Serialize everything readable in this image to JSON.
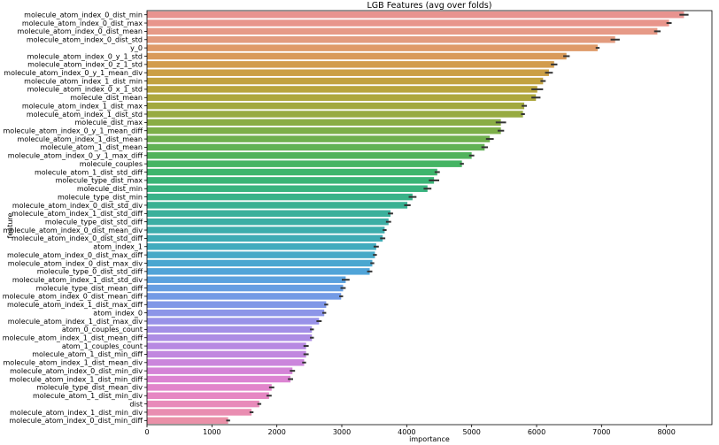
{
  "chart_data": {
    "type": "bar",
    "orientation": "horizontal",
    "title": "LGB Features (avg over folds)",
    "xlabel": "importance",
    "ylabel": "feature",
    "xlim": [
      0,
      8700
    ],
    "xticks": [
      0,
      1000,
      2000,
      3000,
      4000,
      5000,
      6000,
      7000,
      8000
    ],
    "grid": false,
    "error_bars": true,
    "bars": [
      {
        "label": "molecule_atom_index_0_dist_min",
        "value": 8270,
        "err": 70,
        "color": "#e8938f"
      },
      {
        "label": "molecule_atom_index_0_dist_max",
        "value": 8040,
        "err": 40,
        "color": "#e8958c"
      },
      {
        "label": "molecule_atom_index_0_dist_mean",
        "value": 7860,
        "err": 50,
        "color": "#e69a87"
      },
      {
        "label": "molecule_atom_index_0_dist_std",
        "value": 7210,
        "err": 70,
        "color": "#e29b7e"
      },
      {
        "label": "y_0",
        "value": 6940,
        "err": 30,
        "color": "#df9a68"
      },
      {
        "label": "molecule_atom_index_0_y_1_std",
        "value": 6460,
        "err": 50,
        "color": "#d99a5a"
      },
      {
        "label": "molecule_atom_index_0_z_1_std",
        "value": 6270,
        "err": 50,
        "color": "#d29c4d"
      },
      {
        "label": "molecule_atom_index_0_y_1_mean_div",
        "value": 6190,
        "err": 60,
        "color": "#cb9f45"
      },
      {
        "label": "molecule_atom_index_1_dist_min",
        "value": 6100,
        "err": 40,
        "color": "#c2a240"
      },
      {
        "label": "molecule_atom_index_0_x_1_std",
        "value": 6010,
        "err": 90,
        "color": "#b8a43c"
      },
      {
        "label": "molecule_dist_mean",
        "value": 5990,
        "err": 70,
        "color": "#ada73c"
      },
      {
        "label": "molecule_atom_index_1_dist_max",
        "value": 5810,
        "err": 40,
        "color": "#a2a93e"
      },
      {
        "label": "molecule_atom_index_1_dist_std",
        "value": 5790,
        "err": 30,
        "color": "#97ab41"
      },
      {
        "label": "molecule_dist_max",
        "value": 5450,
        "err": 80,
        "color": "#8aad45"
      },
      {
        "label": "molecule_atom_index_0_y_1_mean_diff",
        "value": 5450,
        "err": 50,
        "color": "#7daf4a"
      },
      {
        "label": "molecule_atom_index_1_dist_mean",
        "value": 5280,
        "err": 60,
        "color": "#6fb04f"
      },
      {
        "label": "molecule_atom_1_dist_mean",
        "value": 5200,
        "err": 50,
        "color": "#61b255"
      },
      {
        "label": "molecule_atom_index_0_y_1_max_diff",
        "value": 5000,
        "err": 40,
        "color": "#52b35c"
      },
      {
        "label": "molecule_couples",
        "value": 4850,
        "err": 30,
        "color": "#45b463"
      },
      {
        "label": "molecule_atom_1_dist_std_diff",
        "value": 4470,
        "err": 40,
        "color": "#3db56c"
      },
      {
        "label": "molecule_type_dist_max",
        "value": 4420,
        "err": 80,
        "color": "#3ab476"
      },
      {
        "label": "molecule_dist_min",
        "value": 4320,
        "err": 60,
        "color": "#39b37f"
      },
      {
        "label": "molecule_type_dist_min",
        "value": 4090,
        "err": 60,
        "color": "#39b289"
      },
      {
        "label": "molecule_atom_index_0_dist_std_div",
        "value": 4010,
        "err": 50,
        "color": "#3ab192"
      },
      {
        "label": "molecule_atom_index_1_dist_std_diff",
        "value": 3750,
        "err": 40,
        "color": "#3bb09b"
      },
      {
        "label": "molecule_type_dist_std_diff",
        "value": 3720,
        "err": 40,
        "color": "#3daea4"
      },
      {
        "label": "molecule_atom_index_0_dist_mean_div",
        "value": 3660,
        "err": 30,
        "color": "#3eadac"
      },
      {
        "label": "molecule_atom_index_0_dist_std_diff",
        "value": 3630,
        "err": 40,
        "color": "#40acb5"
      },
      {
        "label": "atom_index_1",
        "value": 3530,
        "err": 40,
        "color": "#42abbe"
      },
      {
        "label": "molecule_atom_index_0_dist_max_diff",
        "value": 3510,
        "err": 30,
        "color": "#45a9c7"
      },
      {
        "label": "molecule_atom_index_0_dist_max_div",
        "value": 3470,
        "err": 30,
        "color": "#49a7d0"
      },
      {
        "label": "molecule_type_0_dist_std_diff",
        "value": 3430,
        "err": 40,
        "color": "#50a4d8"
      },
      {
        "label": "molecule_atom_index_1_dist_std_div",
        "value": 3060,
        "err": 60,
        "color": "#5aa1de"
      },
      {
        "label": "molecule_type_dist_mean_diff",
        "value": 3020,
        "err": 40,
        "color": "#669ee2"
      },
      {
        "label": "molecule_atom_index_0_dist_mean_diff",
        "value": 2990,
        "err": 30,
        "color": "#739ae5"
      },
      {
        "label": "molecule_atom_index_1_dist_max_diff",
        "value": 2760,
        "err": 30,
        "color": "#8097e7"
      },
      {
        "label": "atom_index_0",
        "value": 2730,
        "err": 30,
        "color": "#8c95e8"
      },
      {
        "label": "molecule_atom_index_1_dist_max_div",
        "value": 2650,
        "err": 40,
        "color": "#9892e8"
      },
      {
        "label": "atom_0_couples_count",
        "value": 2540,
        "err": 30,
        "color": "#a38fe6"
      },
      {
        "label": "molecule_atom_index_1_dist_mean_diff",
        "value": 2540,
        "err": 30,
        "color": "#ad8ce4"
      },
      {
        "label": "atom_1_couples_count",
        "value": 2450,
        "err": 40,
        "color": "#b789e2"
      },
      {
        "label": "molecule_atom_1_dist_min_diff",
        "value": 2450,
        "err": 40,
        "color": "#c187df"
      },
      {
        "label": "molecule_atom_index_1_dist_mean_div",
        "value": 2420,
        "err": 30,
        "color": "#cb85dc"
      },
      {
        "label": "molecule_atom_index_0_dist_min_div",
        "value": 2240,
        "err": 40,
        "color": "#d484d7"
      },
      {
        "label": "molecule_atom_index_1_dist_min_diff",
        "value": 2210,
        "err": 40,
        "color": "#dc84d2"
      },
      {
        "label": "molecule_type_dist_mean_div",
        "value": 1920,
        "err": 40,
        "color": "#e285cb"
      },
      {
        "label": "molecule_atom_1_dist_min_div",
        "value": 1880,
        "err": 40,
        "color": "#e687c3"
      },
      {
        "label": "dist",
        "value": 1730,
        "err": 30,
        "color": "#e88aba"
      },
      {
        "label": "molecule_atom_index_1_dist_min_div",
        "value": 1610,
        "err": 30,
        "color": "#e98db1"
      },
      {
        "label": "molecule_atom_index_0_dist_min_diff",
        "value": 1250,
        "err": 30,
        "color": "#ea90a8"
      }
    ]
  }
}
